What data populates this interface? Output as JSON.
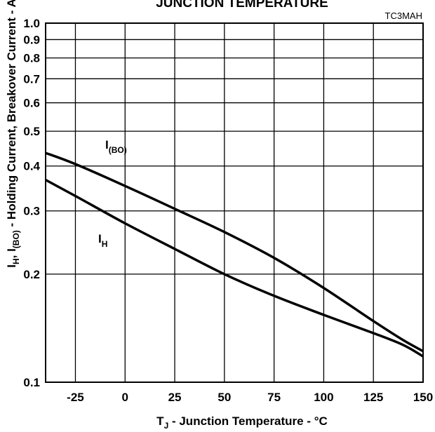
{
  "chart_data": {
    "type": "line",
    "title": "JUNCTION TEMPERATURE",
    "figure_code": "TC3MAH",
    "xlabel": {
      "main": "T",
      "sub": "J",
      "rest": " - Junction Temperature - °C"
    },
    "ylabel": {
      "parts": [
        {
          "t": "I",
          "sub": "H"
        },
        {
          "t": ", I",
          "sub": "(BO)"
        },
        {
          "t": " - Holding Current, Breakover Current -  A"
        }
      ]
    },
    "x_ticks": [
      "-25",
      "0",
      "25",
      "50",
      "75",
      "100",
      "125",
      "150"
    ],
    "y_ticks": [
      "0.1",
      "0.2",
      "0.3",
      "0.4",
      "0.5",
      "0.6",
      "0.7",
      "0.8",
      "0.9",
      "1.0"
    ],
    "xlim": [
      -40,
      150
    ],
    "ylim": [
      0.1,
      1.0
    ],
    "yscale": "log",
    "grid": true,
    "series": [
      {
        "name": "I",
        "name_sub": "(BO)",
        "x": [
          -40,
          -25,
          0,
          25,
          50,
          75,
          100,
          125,
          140,
          150
        ],
        "y": [
          0.435,
          0.405,
          0.352,
          0.304,
          0.262,
          0.222,
          0.183,
          0.148,
          0.131,
          0.122
        ]
      },
      {
        "name": "I",
        "name_sub": "H",
        "x": [
          -40,
          -25,
          0,
          25,
          50,
          75,
          100,
          125,
          140,
          150
        ],
        "y": [
          0.366,
          0.33,
          0.277,
          0.235,
          0.2,
          0.174,
          0.154,
          0.137,
          0.127,
          0.118
        ]
      }
    ]
  }
}
